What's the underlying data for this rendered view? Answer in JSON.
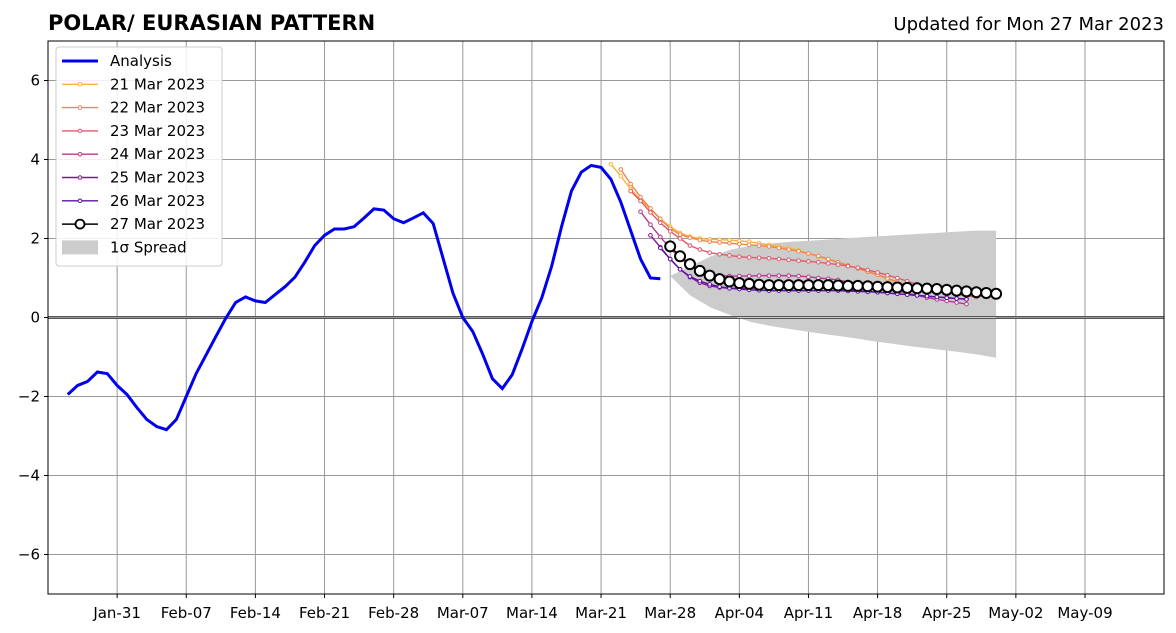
{
  "title_left": "POLAR/ EURASIAN  PATTERN",
  "title_right": "Updated for Mon 27 Mar 2023",
  "chart_data": {
    "type": "line",
    "title": "POLAR/ EURASIAN  PATTERN",
    "subtitle": "Updated for Mon 27 Mar 2023",
    "xlabel": "",
    "ylabel": "",
    "x_axis": {
      "type": "date",
      "range_days_since_jan31": [
        -7,
        106
      ],
      "tick_labels": [
        "Jan-31",
        "Feb-07",
        "Feb-14",
        "Feb-21",
        "Feb-28",
        "Mar-07",
        "Mar-14",
        "Mar-21",
        "Mar-28",
        "Apr-04",
        "Apr-11",
        "Apr-18",
        "Apr-25",
        "May-02",
        "May-09"
      ]
    },
    "y_axis": {
      "range": [
        -7,
        7
      ],
      "ticks": [
        -6,
        -4,
        -2,
        0,
        2,
        4,
        6
      ],
      "tick_labels": [
        "−6",
        "−4",
        "−2",
        "0",
        "2",
        "4",
        "6"
      ]
    },
    "grid": true,
    "zero_line": true,
    "legend_position": "upper-left",
    "legend": [
      "Analysis",
      "21 Mar 2023",
      "22 Mar 2023",
      "23 Mar 2023",
      "24 Mar 2023",
      "25 Mar 2023",
      "26 Mar 2023",
      "27 Mar 2023",
      "1σ Spread"
    ],
    "analysis": {
      "name": "Analysis",
      "color": "#0000ee",
      "start_date": "Jan-26",
      "values": [
        -1.95,
        -1.72,
        -1.62,
        -1.38,
        -1.42,
        -1.72,
        -1.95,
        -2.28,
        -2.58,
        -2.76,
        -2.84,
        -2.58,
        -2.0,
        -1.42,
        -0.95,
        -0.48,
        -0.02,
        0.38,
        0.52,
        0.42,
        0.38,
        0.58,
        0.78,
        1.02,
        1.4,
        1.82,
        2.08,
        2.24,
        2.24,
        2.3,
        2.52,
        2.75,
        2.72,
        2.5,
        2.4,
        2.52,
        2.65,
        2.38,
        1.5,
        0.62,
        0.0,
        -0.35,
        -0.92,
        -1.55,
        -1.8,
        -1.45,
        -0.8,
        -0.1,
        0.5,
        1.3,
        2.3,
        3.2,
        3.68,
        3.85,
        3.8,
        3.5,
        2.92,
        2.2,
        1.48,
        1.0,
        0.98
      ]
    },
    "forecasts": [
      {
        "name": "21 Mar 2023",
        "color": "#f7b538",
        "start_date": "Mar-22",
        "values": [
          3.88,
          3.58,
          3.25,
          2.98,
          2.74,
          2.5,
          2.3,
          2.14,
          2.05,
          2.0,
          1.98,
          1.97,
          1.96,
          1.94,
          1.92,
          1.88,
          1.84,
          1.8,
          1.76,
          1.7,
          1.62,
          1.54,
          1.47,
          1.4,
          1.32,
          1.24,
          1.16,
          1.07,
          0.98,
          0.9,
          0.83,
          0.76
        ]
      },
      {
        "name": "22 Mar 2023",
        "color": "#f1854b",
        "start_date": "Mar-23",
        "values": [
          3.75,
          3.38,
          3.05,
          2.76,
          2.5,
          2.25,
          2.1,
          2.02,
          1.96,
          1.92,
          1.9,
          1.88,
          1.86,
          1.84,
          1.82,
          1.8,
          1.76,
          1.72,
          1.68,
          1.62,
          1.56,
          1.48,
          1.4,
          1.32,
          1.24,
          1.16,
          1.08,
          0.99,
          0.9,
          0.82,
          0.76
        ]
      },
      {
        "name": "23 Mar 2023",
        "color": "#dd5c6e",
        "start_date": "Mar-24",
        "values": [
          3.2,
          2.95,
          2.66,
          2.4,
          2.18,
          2.0,
          1.82,
          1.72,
          1.64,
          1.6,
          1.57,
          1.54,
          1.52,
          1.51,
          1.5,
          1.48,
          1.46,
          1.44,
          1.42,
          1.4,
          1.37,
          1.34,
          1.3,
          1.26,
          1.2,
          1.14,
          1.07,
          1.0,
          0.92,
          0.84,
          0.76,
          0.7,
          0.64,
          0.58,
          0.55,
          0.52
        ]
      },
      {
        "name": "24 Mar 2023",
        "color": "#b73a8f",
        "start_date": "Mar-25",
        "values": [
          2.68,
          2.35,
          2.04,
          1.75,
          1.5,
          1.3,
          1.18,
          1.1,
          1.06,
          1.05,
          1.05,
          1.05,
          1.06,
          1.06,
          1.06,
          1.06,
          1.05,
          1.03,
          1.0,
          0.98,
          0.95,
          0.9,
          0.86,
          0.82,
          0.78,
          0.72,
          0.67,
          0.62,
          0.56,
          0.5,
          0.46,
          0.42,
          0.38,
          0.34
        ]
      },
      {
        "name": "25 Mar 2023",
        "color": "#8e0e9e",
        "start_date": "Mar-26",
        "values": [
          2.08,
          1.78,
          1.48,
          1.22,
          1.02,
          0.88,
          0.8,
          0.76,
          0.74,
          0.74,
          0.74,
          0.75,
          0.76,
          0.77,
          0.77,
          0.77,
          0.76,
          0.75,
          0.74,
          0.72,
          0.7,
          0.68,
          0.66,
          0.64,
          0.62,
          0.6,
          0.58,
          0.56,
          0.54,
          0.52,
          0.5,
          0.48,
          0.47
        ]
      },
      {
        "name": "26 Mar 2023",
        "color": "#5b10a8",
        "start_date": "Mar-27",
        "values": [
          1.76,
          1.48,
          1.22,
          1.04,
          0.92,
          0.84,
          0.78,
          0.74,
          0.72,
          0.7,
          0.69,
          0.68,
          0.68,
          0.68,
          0.68,
          0.68,
          0.68,
          0.68,
          0.68,
          0.67,
          0.66,
          0.65,
          0.64,
          0.62,
          0.6,
          0.58,
          0.56,
          0.54,
          0.52,
          0.5,
          0.48,
          0.46
        ]
      }
    ],
    "current_forecast": {
      "name": "27 Mar 2023",
      "color": "#000000",
      "start_date": "Mar-28",
      "values": [
        1.8,
        1.55,
        1.35,
        1.18,
        1.06,
        0.97,
        0.91,
        0.87,
        0.85,
        0.83,
        0.82,
        0.82,
        0.82,
        0.82,
        0.82,
        0.82,
        0.82,
        0.81,
        0.8,
        0.8,
        0.79,
        0.78,
        0.77,
        0.76,
        0.75,
        0.74,
        0.73,
        0.72,
        0.7,
        0.68,
        0.66,
        0.64,
        0.62,
        0.6
      ]
    },
    "spread": {
      "name": "1σ Spread",
      "color": "#cccccc",
      "start_date": "Mar-28",
      "end_date": "Apr-30",
      "upper": [
        1.05,
        1.3,
        1.55,
        1.72,
        1.82,
        1.88,
        1.92,
        1.95,
        1.98,
        2.02,
        2.05,
        2.08,
        2.11,
        2.14,
        2.17,
        2.2,
        2.2
      ],
      "lower": [
        1.05,
        0.55,
        0.25,
        0.05,
        -0.12,
        -0.22,
        -0.3,
        -0.38,
        -0.45,
        -0.52,
        -0.6,
        -0.67,
        -0.74,
        -0.8,
        -0.86,
        -0.93,
        -1.02
      ]
    }
  }
}
